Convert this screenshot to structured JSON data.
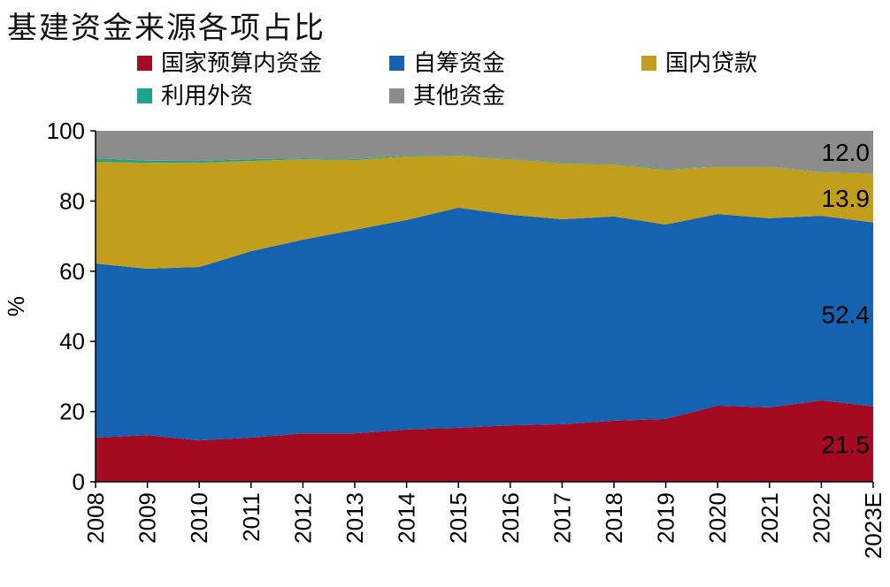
{
  "chart_data": {
    "type": "area",
    "stacked": true,
    "title": "基建资金来源各项占比",
    "xlabel": "",
    "ylabel": "%",
    "ylim": [
      0,
      100
    ],
    "yticks": [
      "0",
      "20",
      "40",
      "60",
      "80",
      "100"
    ],
    "categories": [
      "2008",
      "2009",
      "2010",
      "2011",
      "2012",
      "2013",
      "2014",
      "2015",
      "2016",
      "2017",
      "2018",
      "2019",
      "2020",
      "2021",
      "2022",
      "2023E"
    ],
    "legend_position": "top",
    "series": [
      {
        "name": "国家预算内资金",
        "color": "#A50A23",
        "values": [
          12.6,
          13.3,
          11.8,
          12.6,
          13.8,
          13.8,
          14.9,
          15.4,
          16.1,
          16.4,
          17.4,
          17.9,
          21.7,
          21.2,
          23.2,
          21.5
        ]
      },
      {
        "name": "自筹资金",
        "color": "#1563B0",
        "values": [
          49.6,
          47.4,
          49.4,
          53.1,
          55.2,
          58.0,
          59.7,
          62.7,
          60.0,
          58.4,
          58.2,
          55.4,
          54.6,
          53.9,
          52.6,
          52.4
        ]
      },
      {
        "name": "国内贷款",
        "color": "#C29E1D",
        "values": [
          29.0,
          30.2,
          29.7,
          25.7,
          22.9,
          19.9,
          18.1,
          14.8,
          15.8,
          15.9,
          14.8,
          15.6,
          13.4,
          14.6,
          12.4,
          13.9
        ]
      },
      {
        "name": "利用外资",
        "color": "#1FA386",
        "values": [
          1.0,
          0.6,
          0.5,
          0.5,
          0.3,
          0.3,
          0.2,
          0.2,
          0.2,
          0.2,
          0.2,
          0.2,
          0.1,
          0.1,
          0.1,
          0.2
        ]
      },
      {
        "name": "其他资金",
        "color": "#8C8C8C",
        "values": [
          7.8,
          8.5,
          8.6,
          8.1,
          7.8,
          8.0,
          7.1,
          6.9,
          7.9,
          9.1,
          9.4,
          10.9,
          10.2,
          10.2,
          11.7,
          12.0
        ]
      }
    ],
    "annotations": [
      {
        "series": "国家预算内资金",
        "category": "2023E",
        "text": "21.5"
      },
      {
        "series": "自筹资金",
        "category": "2023E",
        "text": "52.4"
      },
      {
        "series": "国内贷款",
        "category": "2023E",
        "text": "13.9"
      },
      {
        "series": "其他资金",
        "category": "2023E",
        "text": "12.0"
      }
    ]
  }
}
